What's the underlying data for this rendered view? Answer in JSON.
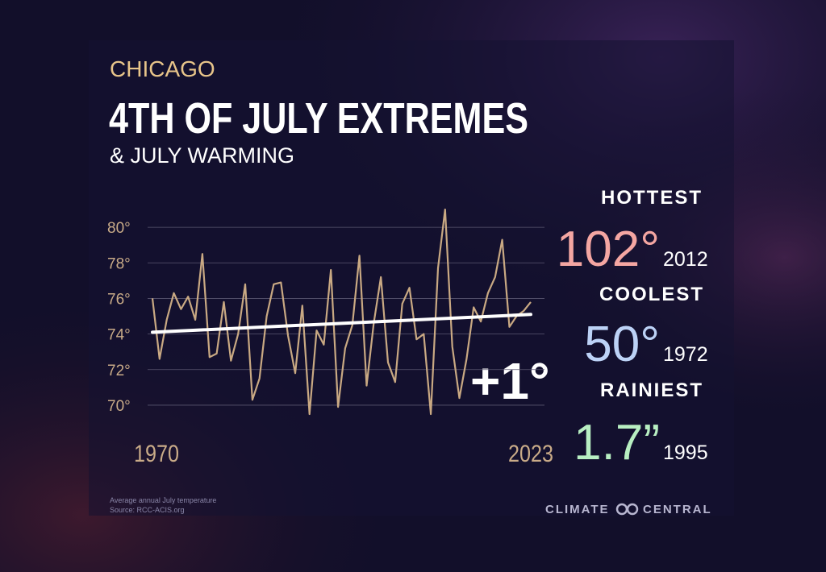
{
  "chart_data": {
    "type": "line",
    "kicker": "CHICAGO",
    "title": "4TH OF JULY EXTREMES",
    "subtitle": "& JULY WARMING",
    "annotation": "+1°",
    "note": "Average annual July temperature",
    "source": "Source: RCC-ACIS.org",
    "x": [
      1970,
      1971,
      1972,
      1973,
      1974,
      1975,
      1976,
      1977,
      1978,
      1979,
      1980,
      1981,
      1982,
      1983,
      1984,
      1985,
      1986,
      1987,
      1988,
      1989,
      1990,
      1991,
      1992,
      1993,
      1994,
      1995,
      1996,
      1997,
      1998,
      1999,
      2000,
      2001,
      2002,
      2003,
      2004,
      2005,
      2006,
      2007,
      2008,
      2009,
      2010,
      2011,
      2012,
      2013,
      2014,
      2015,
      2016,
      2017,
      2018,
      2019,
      2020,
      2021,
      2022,
      2023
    ],
    "series": [
      {
        "color": "#c9a983",
        "values": [
          76.0,
          72.6,
          74.8,
          76.3,
          75.4,
          76.1,
          74.8,
          78.5,
          72.7,
          72.9,
          75.8,
          72.5,
          74.0,
          76.8,
          70.3,
          71.5,
          75.0,
          76.8,
          76.9,
          73.9,
          71.8,
          75.6,
          69.5,
          74.2,
          73.4,
          77.6,
          69.9,
          73.2,
          74.5,
          78.4,
          71.1,
          74.6,
          77.2,
          72.4,
          71.3,
          75.7,
          76.6,
          73.7,
          74.0,
          69.5,
          77.7,
          81.0,
          73.3,
          70.4,
          72.6,
          75.5,
          74.7,
          76.3,
          77.2,
          79.3,
          74.4,
          75.0,
          75.3,
          75.8
        ]
      }
    ],
    "trendline": {
      "color": "#ffffff",
      "x": [
        1970,
        2023
      ],
      "values": [
        74.1,
        75.1
      ]
    },
    "xlim": [
      1970,
      2023
    ],
    "xticks": [
      1970,
      2023
    ],
    "ylim": [
      69,
      81.5
    ],
    "yticks": [
      {
        "value": 70,
        "label": "70°"
      },
      {
        "value": 72,
        "label": "72°"
      },
      {
        "value": 74,
        "label": "74°"
      },
      {
        "value": 76,
        "label": "76°"
      },
      {
        "value": 78,
        "label": "78°"
      },
      {
        "value": 80,
        "label": "80°"
      }
    ],
    "grid": true
  },
  "stats": [
    {
      "label": "HOTTEST",
      "value": "102°",
      "year": "2012",
      "color": "#f4a6a2"
    },
    {
      "label": "COOLEST",
      "value": "50°",
      "year": "1972",
      "color": "#bcd2f6"
    },
    {
      "label": "RAINIEST",
      "value": "1.7”",
      "year": "1995",
      "color": "#b8efc2"
    }
  ],
  "brand": [
    "CLIMATE",
    "CENTRAL"
  ]
}
